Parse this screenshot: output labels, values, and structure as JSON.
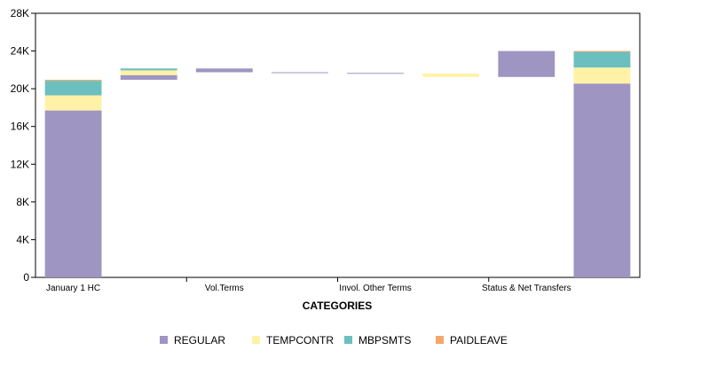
{
  "chart_data": {
    "type": "bar",
    "subtype": "stacked-waterfall",
    "xlabel": "CATEGORIES",
    "ylabel": "",
    "ylim": [
      0,
      28000
    ],
    "yticks": [
      0,
      4000,
      8000,
      12000,
      16000,
      20000,
      24000,
      28000
    ],
    "ytick_labels": [
      "0",
      "4K",
      "8K",
      "12K",
      "16K",
      "20K",
      "24K",
      "28K"
    ],
    "category_labels": [
      "January 1 HC",
      "Vol.Terms",
      "Invol. Other Terms",
      "Status & Net Transfers"
    ],
    "legend": {
      "placement": "bottom"
    },
    "series": [
      {
        "name": "REGULAR",
        "color": "#9e95c2"
      },
      {
        "name": "TEMPCONTR",
        "color": "#fff2a6"
      },
      {
        "name": "MBPSMTS",
        "color": "#6cbfbf"
      },
      {
        "name": "PAIDLEAVE",
        "color": "#f4a66b"
      }
    ],
    "bars": [
      {
        "segments": [
          {
            "series": "REGULAR",
            "from": 0,
            "to": 17700
          },
          {
            "series": "TEMPCONTR",
            "from": 17700,
            "to": 19300
          },
          {
            "series": "MBPSMTS",
            "from": 19300,
            "to": 20850
          },
          {
            "series": "PAIDLEAVE",
            "from": 20850,
            "to": 20950
          }
        ]
      },
      {
        "segments": [
          {
            "series": "REGULAR",
            "from": 20950,
            "to": 21450
          },
          {
            "series": "TEMPCONTR",
            "from": 21450,
            "to": 21950
          },
          {
            "series": "MBPSMTS",
            "from": 21950,
            "to": 22150
          }
        ]
      },
      {
        "segments": [
          {
            "series": "REGULAR",
            "from": 21750,
            "to": 22150
          }
        ]
      },
      {
        "segments": [
          {
            "series": "REGULAR",
            "from": 21680,
            "to": 21750
          }
        ]
      },
      {
        "segments": [
          {
            "series": "REGULAR",
            "from": 21620,
            "to": 21680
          }
        ]
      },
      {
        "segments": [
          {
            "series": "TEMPCONTR",
            "from": 21250,
            "to": 21620
          }
        ]
      },
      {
        "segments": [
          {
            "series": "REGULAR",
            "from": 21250,
            "to": 24000
          }
        ]
      },
      {
        "segments": [
          {
            "series": "REGULAR",
            "from": 0,
            "to": 20550
          },
          {
            "series": "TEMPCONTR",
            "from": 20550,
            "to": 22250
          },
          {
            "series": "MBPSMTS",
            "from": 22250,
            "to": 23950
          },
          {
            "series": "PAIDLEAVE",
            "from": 23950,
            "to": 24000
          }
        ]
      }
    ]
  }
}
